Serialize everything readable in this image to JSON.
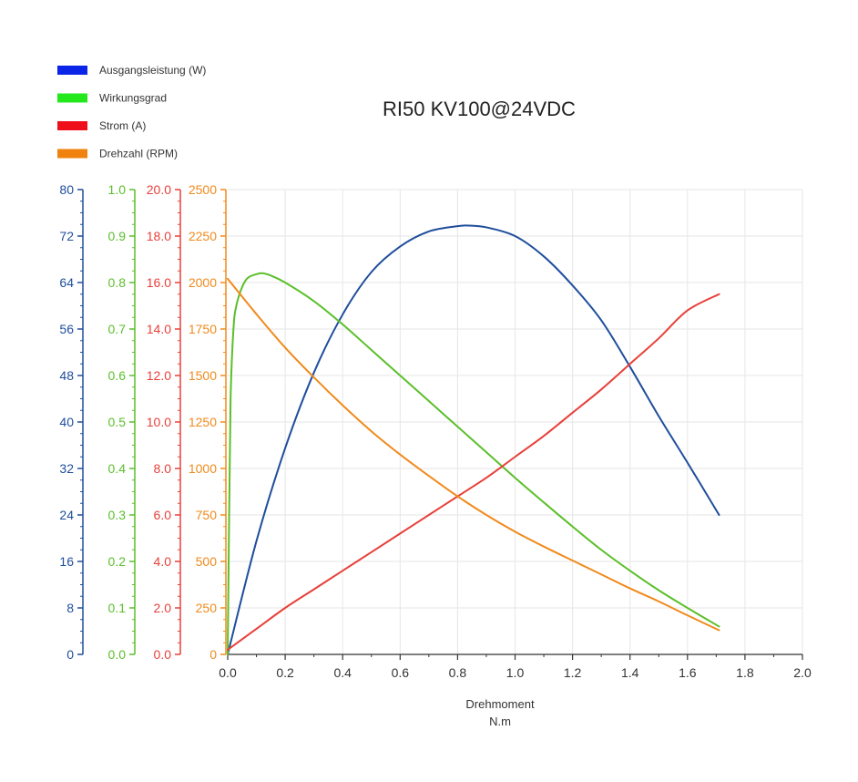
{
  "chart_data": {
    "type": "line",
    "title": "RI50 KV100@24VDC",
    "xlabel": "Drehmoment",
    "xunit": "N.m",
    "xlim": [
      0,
      2.0
    ],
    "xticks": [
      "0.0",
      "0.2",
      "0.4",
      "0.6",
      "0.8",
      "1.0",
      "1.2",
      "1.4",
      "1.6",
      "1.8",
      "2.0"
    ],
    "grid": true,
    "legend_position": "top-left",
    "axes": [
      {
        "id": "power",
        "color": "#1f4e9c",
        "ylim": [
          0,
          80
        ],
        "ticks": [
          "0",
          "8",
          "16",
          "24",
          "32",
          "40",
          "48",
          "56",
          "64",
          "72",
          "80"
        ]
      },
      {
        "id": "eff",
        "color": "#5bbf2a",
        "ylim": [
          0,
          1.0
        ],
        "ticks": [
          "0.0",
          "0.1",
          "0.2",
          "0.3",
          "0.4",
          "0.5",
          "0.6",
          "0.7",
          "0.8",
          "0.9",
          "1.0"
        ]
      },
      {
        "id": "current",
        "color": "#e8403a",
        "ylim": [
          0,
          20
        ],
        "ticks": [
          "0.0",
          "2.0",
          "4.0",
          "6.0",
          "8.0",
          "10.0",
          "12.0",
          "14.0",
          "16.0",
          "18.0",
          "20.0"
        ]
      },
      {
        "id": "speed",
        "color": "#f08a1c",
        "ylim": [
          0,
          2500
        ],
        "ticks": [
          "0",
          "250",
          "500",
          "750",
          "1000",
          "1250",
          "1500",
          "1750",
          "2000",
          "2250",
          "2500"
        ]
      }
    ],
    "series": [
      {
        "name": "Ausgangsleistung (W)",
        "legend_color": "#0a24e8",
        "color": "#1f4e9c",
        "axis": "power",
        "x": [
          0,
          0.1,
          0.2,
          0.3,
          0.4,
          0.5,
          0.6,
          0.7,
          0.8,
          0.84,
          0.9,
          1.0,
          1.1,
          1.2,
          1.3,
          1.4,
          1.5,
          1.6,
          1.71
        ],
        "y": [
          0,
          19.5,
          35.5,
          48.5,
          58.5,
          65.8,
          70.2,
          72.8,
          73.7,
          73.8,
          73.5,
          72.0,
          68.5,
          63.5,
          57.5,
          49.5,
          41.0,
          33.0,
          24.0
        ]
      },
      {
        "name": "Wirkungsgrad",
        "legend_color": "#22e81c",
        "color": "#5bbf2a",
        "axis": "eff",
        "x": [
          0,
          0.005,
          0.01,
          0.02,
          0.03,
          0.05,
          0.07,
          0.1,
          0.12,
          0.15,
          0.2,
          0.3,
          0.4,
          0.5,
          0.6,
          0.7,
          0.8,
          0.9,
          1.0,
          1.1,
          1.2,
          1.3,
          1.4,
          1.5,
          1.6,
          1.71
        ],
        "y": [
          0,
          0.3,
          0.55,
          0.7,
          0.75,
          0.79,
          0.81,
          0.818,
          0.82,
          0.815,
          0.8,
          0.76,
          0.71,
          0.655,
          0.6,
          0.545,
          0.49,
          0.435,
          0.38,
          0.327,
          0.275,
          0.225,
          0.18,
          0.138,
          0.1,
          0.06
        ]
      },
      {
        "name": "Strom (A)",
        "legend_color": "#ee0f1a",
        "color": "#e8403a",
        "axis": "current",
        "x": [
          0,
          0.1,
          0.2,
          0.3,
          0.4,
          0.5,
          0.6,
          0.7,
          0.8,
          0.9,
          1.0,
          1.1,
          1.2,
          1.3,
          1.4,
          1.5,
          1.6,
          1.71
        ],
        "y": [
          0.2,
          1.1,
          2.0,
          2.8,
          3.6,
          4.4,
          5.2,
          6.0,
          6.8,
          7.6,
          8.5,
          9.4,
          10.4,
          11.4,
          12.5,
          13.6,
          14.8,
          15.5
        ]
      },
      {
        "name": "Drehzahl (RPM)",
        "legend_color": "#f0820e",
        "color": "#f08a1c",
        "axis": "speed",
        "x": [
          0,
          0.1,
          0.2,
          0.3,
          0.4,
          0.5,
          0.6,
          0.7,
          0.8,
          0.9,
          1.0,
          1.1,
          1.2,
          1.3,
          1.4,
          1.5,
          1.6,
          1.71
        ],
        "y": [
          2020,
          1830,
          1650,
          1490,
          1340,
          1200,
          1075,
          960,
          850,
          750,
          660,
          580,
          505,
          430,
          355,
          285,
          210,
          130
        ]
      }
    ]
  }
}
